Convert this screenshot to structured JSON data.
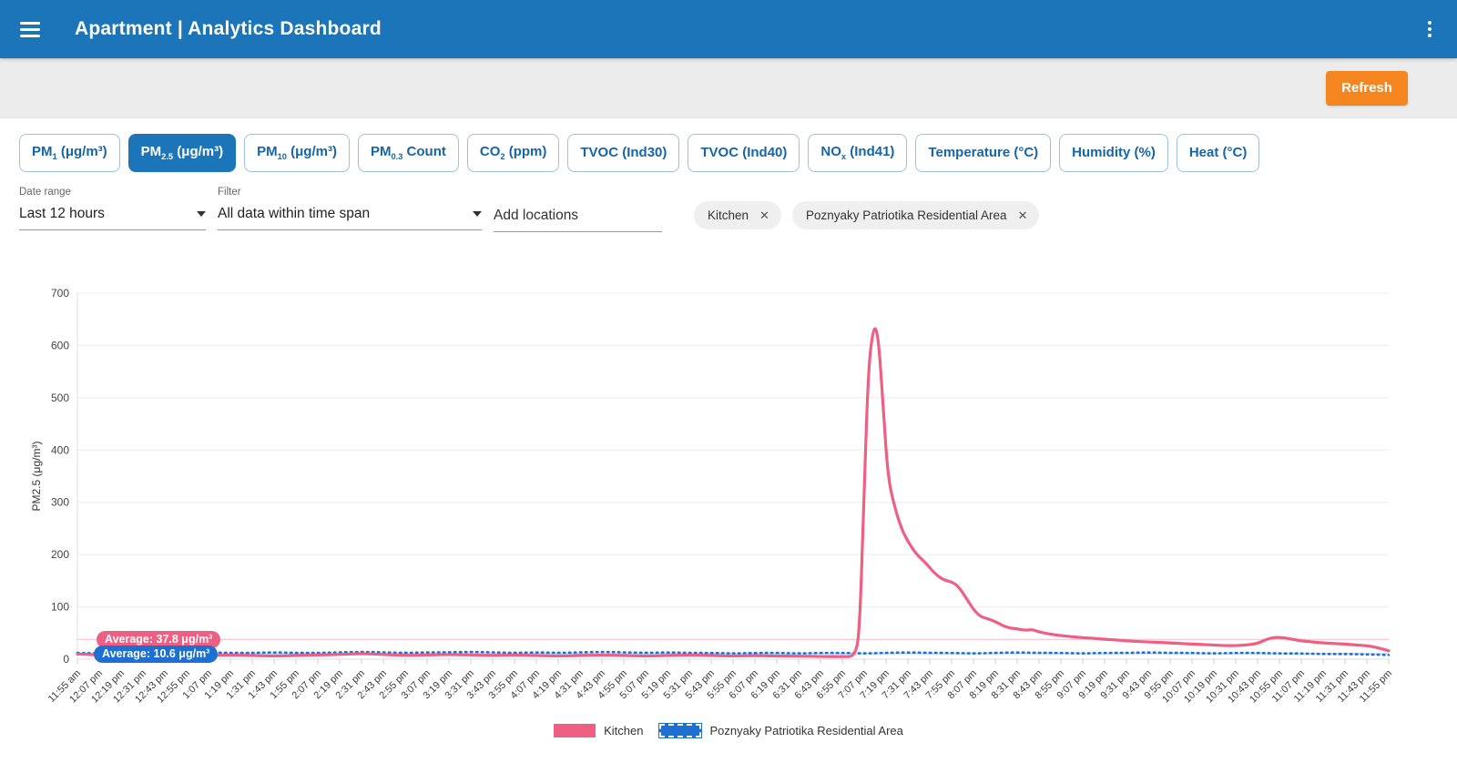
{
  "header": {
    "title": "Apartment | Analytics Dashboard"
  },
  "toolbar": {
    "refresh_label": "Refresh",
    "refresh_color": "#F5861F"
  },
  "tabs": {
    "items": [
      {
        "id": "pm1",
        "active": false,
        "segments": [
          {
            "t": "PM"
          },
          {
            "t": "1",
            "sub": true
          },
          {
            "t": " (μg/m³)"
          }
        ]
      },
      {
        "id": "pm2-5",
        "active": true,
        "segments": [
          {
            "t": "PM"
          },
          {
            "t": "2.5",
            "sub": true
          },
          {
            "t": " (μg/m³)"
          }
        ]
      },
      {
        "id": "pm10",
        "active": false,
        "segments": [
          {
            "t": "PM"
          },
          {
            "t": "10",
            "sub": true
          },
          {
            "t": " (μg/m³)"
          }
        ]
      },
      {
        "id": "pm0-3",
        "active": false,
        "segments": [
          {
            "t": "PM"
          },
          {
            "t": "0.3",
            "sub": true
          },
          {
            "t": " Count"
          }
        ]
      },
      {
        "id": "co2",
        "active": false,
        "segments": [
          {
            "t": "CO"
          },
          {
            "t": "2",
            "sub": true
          },
          {
            "t": " (ppm)"
          }
        ]
      },
      {
        "id": "tvoc-ind30",
        "active": false,
        "segments": [
          {
            "t": "TVOC (Ind30)"
          }
        ]
      },
      {
        "id": "tvoc-ind40",
        "active": false,
        "segments": [
          {
            "t": "TVOC (Ind40)"
          }
        ]
      },
      {
        "id": "nox-ind41",
        "active": false,
        "segments": [
          {
            "t": "NO"
          },
          {
            "t": "x",
            "sub": true
          },
          {
            "t": " (Ind41)"
          }
        ]
      },
      {
        "id": "temperature",
        "active": false,
        "segments": [
          {
            "t": "Temperature (°C)"
          }
        ]
      },
      {
        "id": "humidity",
        "active": false,
        "segments": [
          {
            "t": "Humidity (%)"
          }
        ]
      },
      {
        "id": "heat",
        "active": false,
        "segments": [
          {
            "t": "Heat (°C)"
          }
        ]
      }
    ]
  },
  "filters": {
    "date_range": {
      "label": "Date range",
      "value": "Last 12 hours"
    },
    "filter": {
      "label": "Filter",
      "value": "All data within time span"
    },
    "add_locations_placeholder": "Add locations",
    "location_chips": [
      "Kitchen",
      "Poznyaky Patriotika Residential Area"
    ]
  },
  "chart_data": {
    "type": "line",
    "ylabel": "PM2.5 (μg/m³)",
    "ylim": [
      0,
      700
    ],
    "yticks": [
      0,
      100,
      200,
      300,
      400,
      500,
      600,
      700
    ],
    "grid": true,
    "legend_position": "bottom",
    "x_tick_labels": [
      "11:55 am",
      "12:07 pm",
      "12:19 pm",
      "12:31 pm",
      "12:43 pm",
      "12:55 pm",
      "1:07 pm",
      "1:19 pm",
      "1:31 pm",
      "1:43 pm",
      "1:55 pm",
      "2:07 pm",
      "2:19 pm",
      "2:31 pm",
      "2:43 pm",
      "2:55 pm",
      "3:07 pm",
      "3:19 pm",
      "3:31 pm",
      "3:43 pm",
      "3:55 pm",
      "4:07 pm",
      "4:19 pm",
      "4:31 pm",
      "4:43 pm",
      "4:55 pm",
      "5:07 pm",
      "5:19 pm",
      "5:31 pm",
      "5:43 pm",
      "5:55 pm",
      "6:07 pm",
      "6:19 pm",
      "6:31 pm",
      "6:43 pm",
      "6:55 pm",
      "7:07 pm",
      "7:19 pm",
      "7:31 pm",
      "7:43 pm",
      "7:55 pm",
      "8:07 pm",
      "8:19 pm",
      "8:31 pm",
      "8:43 pm",
      "8:55 pm",
      "9:07 pm",
      "9:19 pm",
      "9:31 pm",
      "9:43 pm",
      "9:55 pm",
      "10:07 pm",
      "10:19 pm",
      "10:31 pm",
      "10:43 pm",
      "10:55 pm",
      "11:07 pm",
      "11:19 pm",
      "11:31 pm",
      "11:43 pm",
      "11:55 pm"
    ],
    "series": [
      {
        "name": "Kitchen",
        "color": "#EE5F83",
        "style": "solid",
        "average": 37.8,
        "average_label": "Average: 37.8 μg/m³",
        "average_line_color": "#F6C3D0",
        "points": [
          [
            0,
            10
          ],
          [
            1,
            8
          ],
          [
            2,
            7
          ],
          [
            3,
            8
          ],
          [
            4,
            7
          ],
          [
            5,
            6
          ],
          [
            6,
            7
          ],
          [
            7,
            8
          ],
          [
            8,
            7
          ],
          [
            9,
            6
          ],
          [
            10,
            7
          ],
          [
            11,
            8
          ],
          [
            12,
            9
          ],
          [
            13,
            11
          ],
          [
            14,
            9
          ],
          [
            15,
            7
          ],
          [
            16,
            8
          ],
          [
            17,
            9
          ],
          [
            18,
            8
          ],
          [
            19,
            7
          ],
          [
            20,
            8
          ],
          [
            21,
            7
          ],
          [
            22,
            6
          ],
          [
            23,
            7
          ],
          [
            24,
            8
          ],
          [
            25,
            7
          ],
          [
            26,
            6
          ],
          [
            27,
            7
          ],
          [
            28,
            8
          ],
          [
            29,
            7
          ],
          [
            30,
            6
          ],
          [
            31,
            7
          ],
          [
            32,
            6
          ],
          [
            33,
            6
          ],
          [
            34,
            5
          ],
          [
            35,
            5
          ],
          [
            35.6,
            5
          ],
          [
            35.8,
            60
          ],
          [
            36,
            330
          ],
          [
            36.2,
            560
          ],
          [
            36.4,
            628
          ],
          [
            36.55,
            635
          ],
          [
            36.7,
            590
          ],
          [
            36.9,
            460
          ],
          [
            37.1,
            345
          ],
          [
            37.4,
            290
          ],
          [
            37.7,
            250
          ],
          [
            38,
            225
          ],
          [
            38.4,
            200
          ],
          [
            38.8,
            185
          ],
          [
            39.2,
            165
          ],
          [
            39.6,
            152
          ],
          [
            40,
            148
          ],
          [
            40.3,
            140
          ],
          [
            40.7,
            115
          ],
          [
            41,
            95
          ],
          [
            41.3,
            82
          ],
          [
            41.6,
            78
          ],
          [
            42,
            72
          ],
          [
            42.3,
            65
          ],
          [
            42.6,
            60
          ],
          [
            43,
            58
          ],
          [
            43.4,
            55
          ],
          [
            43.7,
            57
          ],
          [
            44,
            52
          ],
          [
            44.5,
            48
          ],
          [
            45,
            45
          ],
          [
            45.5,
            43
          ],
          [
            46,
            41
          ],
          [
            46.5,
            40
          ],
          [
            47,
            38
          ],
          [
            47.5,
            37
          ],
          [
            48,
            35
          ],
          [
            48.5,
            34
          ],
          [
            49,
            33
          ],
          [
            49.5,
            32
          ],
          [
            50,
            31
          ],
          [
            50.5,
            30
          ],
          [
            51,
            29
          ],
          [
            51.5,
            28
          ],
          [
            52,
            27
          ],
          [
            52.5,
            26
          ],
          [
            53,
            26
          ],
          [
            53.5,
            27
          ],
          [
            54,
            30
          ],
          [
            54.4,
            38
          ],
          [
            54.8,
            42
          ],
          [
            55.2,
            41
          ],
          [
            55.6,
            38
          ],
          [
            56,
            35
          ],
          [
            56.5,
            33
          ],
          [
            57,
            31
          ],
          [
            57.5,
            30
          ],
          [
            58,
            29
          ],
          [
            58.5,
            27
          ],
          [
            59,
            26
          ],
          [
            59.5,
            22
          ],
          [
            60,
            16
          ]
        ]
      },
      {
        "name": "Poznyaky Patriotika Residential Area",
        "color": "#1D6FD2",
        "style": "dotted",
        "average": 10.6,
        "average_label": "Average: 10.6 μg/m³",
        "average_line_color": "#ACCBEE",
        "points": [
          [
            0,
            12
          ],
          [
            1,
            11
          ],
          [
            2,
            12
          ],
          [
            3,
            12
          ],
          [
            4,
            11
          ],
          [
            5,
            12
          ],
          [
            6,
            13
          ],
          [
            7,
            12
          ],
          [
            8,
            12
          ],
          [
            9,
            13
          ],
          [
            10,
            12
          ],
          [
            11,
            12
          ],
          [
            12,
            13
          ],
          [
            13,
            14
          ],
          [
            14,
            13
          ],
          [
            15,
            12
          ],
          [
            16,
            13
          ],
          [
            17,
            13
          ],
          [
            18,
            14
          ],
          [
            19,
            13
          ],
          [
            20,
            12
          ],
          [
            21,
            13
          ],
          [
            22,
            12
          ],
          [
            23,
            13
          ],
          [
            24,
            14
          ],
          [
            25,
            13
          ],
          [
            26,
            12
          ],
          [
            27,
            13
          ],
          [
            28,
            12
          ],
          [
            29,
            12
          ],
          [
            30,
            11
          ],
          [
            31,
            12
          ],
          [
            32,
            12
          ],
          [
            33,
            11
          ],
          [
            34,
            12
          ],
          [
            35,
            12
          ],
          [
            36,
            11
          ],
          [
            37,
            12
          ],
          [
            38,
            13
          ],
          [
            39,
            12
          ],
          [
            40,
            12
          ],
          [
            41,
            11
          ],
          [
            42,
            12
          ],
          [
            43,
            13
          ],
          [
            44,
            12
          ],
          [
            45,
            12
          ],
          [
            46,
            11
          ],
          [
            47,
            12
          ],
          [
            48,
            12
          ],
          [
            49,
            13
          ],
          [
            50,
            12
          ],
          [
            51,
            12
          ],
          [
            52,
            11
          ],
          [
            53,
            12
          ],
          [
            54,
            12
          ],
          [
            55,
            11
          ],
          [
            56,
            11
          ],
          [
            57,
            10
          ],
          [
            58,
            10
          ],
          [
            59,
            9
          ],
          [
            60,
            8
          ]
        ]
      }
    ]
  }
}
